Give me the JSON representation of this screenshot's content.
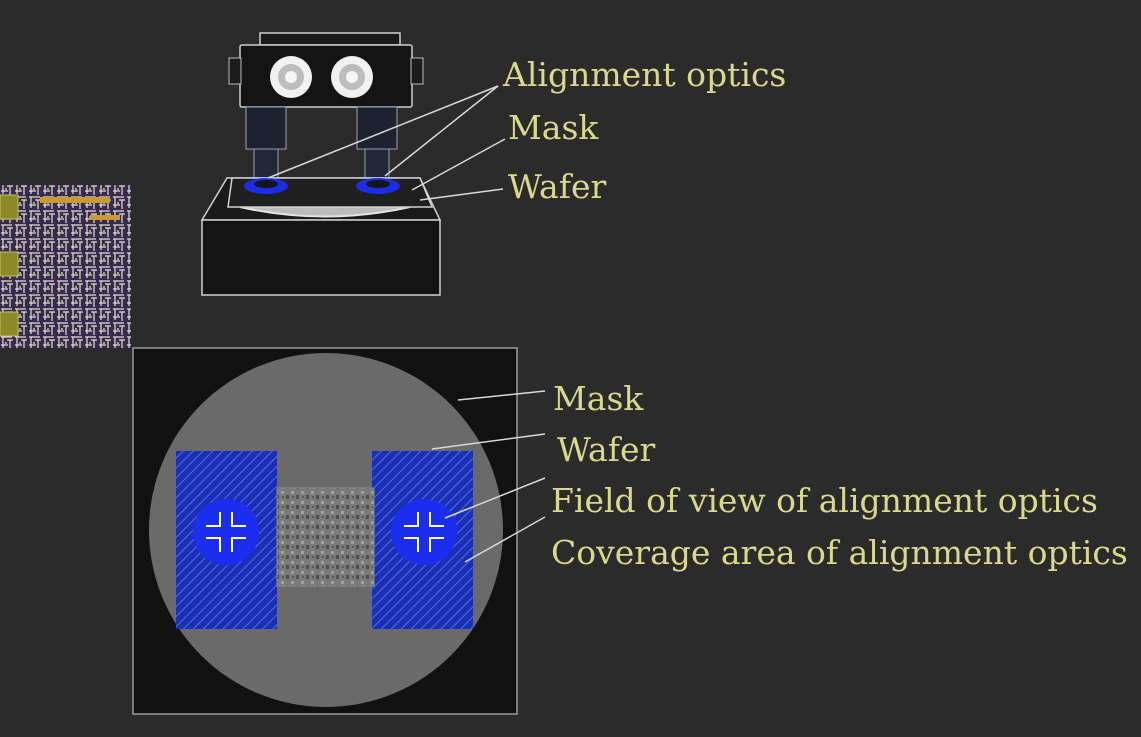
{
  "top_labels": {
    "alignment_optics": "Alignment optics",
    "mask": "Mask",
    "wafer": "Wafer"
  },
  "bottom_labels": {
    "mask": "Mask",
    "wafer": "Wafer",
    "field_of_view": "Field of view of alignment optics",
    "coverage_area": "Coverage area of alignment optics"
  },
  "colors": {
    "background": "#2b2b2b",
    "label_text": "#d9d98c",
    "optics_blue": "#1a2ee8",
    "leader_line": "#d8d8d8",
    "mask_dark": "#111111",
    "wafer_gray": "#6a6a6a"
  }
}
